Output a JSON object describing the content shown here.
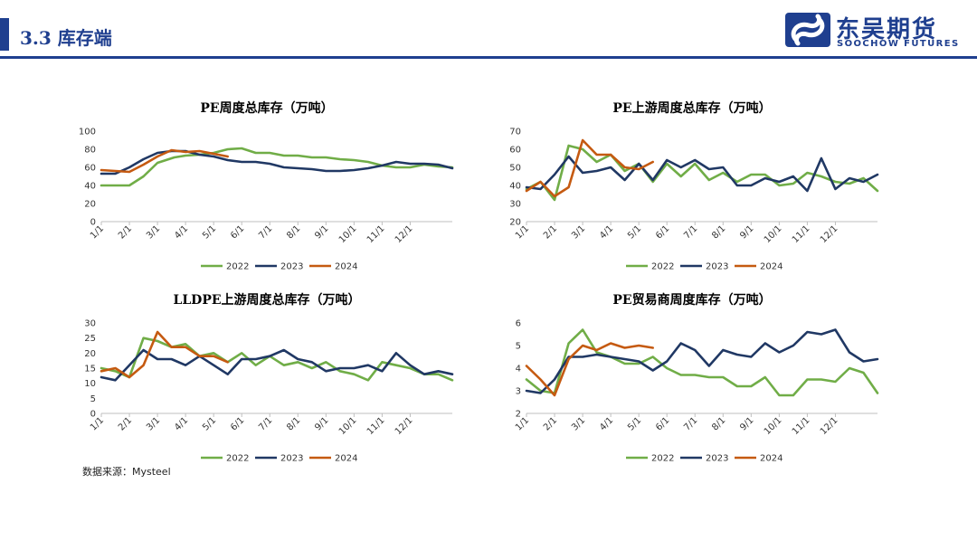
{
  "header": {
    "title": "3.3 库存端",
    "accent_color": "#1f3f8f"
  },
  "logo": {
    "cn": "东吴期货",
    "en": "SOOCHOW FUTURES",
    "color": "#1f3f8f"
  },
  "source": "数据来源：Mysteel",
  "series_colors": {
    "2022": "#70ad47",
    "2023": "#203864",
    "2024": "#c55a11"
  },
  "chart_data": [
    {
      "type": "line",
      "title": "PE周度总库存（万吨）",
      "xticks": [
        "1/1",
        "2/1",
        "3/1",
        "4/1",
        "5/1",
        "6/1",
        "7/1",
        "8/1",
        "9/1",
        "10/1",
        "11/1",
        "12/1"
      ],
      "ylim": [
        0,
        100
      ],
      "yticks": [
        0,
        20,
        40,
        60,
        80,
        100
      ],
      "legend": [
        "2022",
        "2023",
        "2024"
      ],
      "series": [
        {
          "name": "2022",
          "x": [
            0,
            1,
            1.5,
            2,
            2.6,
            3,
            3.5,
            4,
            4.5,
            5,
            5.5,
            6,
            6.5,
            7,
            7.5,
            8,
            8.5,
            9,
            9.5,
            10,
            10.5,
            11,
            11.5,
            12,
            12.5
          ],
          "values": [
            40,
            40,
            50,
            65,
            71,
            73,
            74,
            76,
            80,
            81,
            76,
            76,
            73,
            73,
            71,
            71,
            69,
            68,
            66,
            62,
            60,
            60,
            63,
            61,
            60
          ]
        },
        {
          "name": "2023",
          "x": [
            0,
            0.5,
            1,
            1.5,
            2,
            2.5,
            3,
            3.5,
            4,
            4.5,
            5,
            5.5,
            6,
            6.5,
            7,
            7.5,
            8,
            8.5,
            9,
            9.5,
            10,
            10.5,
            11,
            11.5,
            12,
            12.5
          ],
          "values": [
            53,
            53,
            60,
            69,
            76,
            78,
            78,
            74,
            72,
            68,
            66,
            66,
            64,
            60,
            59,
            58,
            56,
            56,
            57,
            59,
            62,
            66,
            64,
            64,
            63,
            59
          ]
        },
        {
          "name": "2024",
          "x": [
            0,
            0.5,
            1,
            1.5,
            2,
            2.5,
            3,
            3.5,
            4,
            4.5
          ],
          "values": [
            57,
            56,
            55,
            63,
            72,
            79,
            77,
            78,
            75,
            72
          ]
        }
      ]
    },
    {
      "type": "line",
      "title": "PE上游周度总库存（万吨）",
      "xticks": [
        "1/1",
        "2/1",
        "3/1",
        "4/1",
        "5/1",
        "6/1",
        "7/1",
        "8/1",
        "9/1",
        "10/1",
        "11/1",
        "12/1"
      ],
      "ylim": [
        20,
        70
      ],
      "yticks": [
        20,
        30,
        40,
        50,
        60,
        70
      ],
      "legend": [
        "2022",
        "2023",
        "2024"
      ],
      "series": [
        {
          "name": "2022",
          "x": [
            0,
            0.5,
            1,
            1.5,
            2,
            2.5,
            3,
            3.5,
            4,
            4.5,
            5,
            5.5,
            6,
            6.5,
            7,
            7.5,
            8,
            8.5,
            9,
            9.5,
            10,
            10.5,
            11,
            11.5,
            12,
            12.5
          ],
          "values": [
            38,
            42,
            32,
            62,
            60,
            53,
            57,
            48,
            52,
            42,
            52,
            45,
            52,
            43,
            47,
            42,
            46,
            46,
            40,
            41,
            47,
            45,
            42,
            41,
            44,
            37
          ]
        },
        {
          "name": "2023",
          "x": [
            0,
            0.5,
            1,
            1.5,
            2,
            2.5,
            3,
            3.5,
            4,
            4.5,
            5,
            5.5,
            6,
            6.5,
            7,
            7.5,
            8,
            8.5,
            9,
            9.5,
            10,
            10.5,
            11,
            11.5,
            12,
            12.5
          ],
          "values": [
            39,
            38,
            46,
            56,
            47,
            48,
            50,
            43,
            52,
            43,
            54,
            50,
            54,
            49,
            50,
            40,
            40,
            44,
            42,
            45,
            37,
            55,
            38,
            44,
            42,
            46
          ]
        },
        {
          "name": "2024",
          "x": [
            0,
            0.5,
            1,
            1.5,
            2,
            2.5,
            3,
            3.5,
            4,
            4.5
          ],
          "values": [
            37,
            42,
            34,
            39,
            65,
            57,
            57,
            50,
            49,
            53
          ]
        }
      ]
    },
    {
      "type": "line",
      "title": "LLDPE上游周度总库存（万吨）",
      "xticks": [
        "1/1",
        "2/1",
        "3/1",
        "4/1",
        "5/1",
        "6/1",
        "7/1",
        "8/1",
        "9/1",
        "10/1",
        "11/1",
        "12/1"
      ],
      "ylim": [
        0,
        30
      ],
      "yticks": [
        0,
        5,
        10,
        15,
        20,
        25,
        30
      ],
      "legend": [
        "2022",
        "2023",
        "2024"
      ],
      "series": [
        {
          "name": "2022",
          "x": [
            0,
            0.5,
            1,
            1.5,
            2,
            2.5,
            3,
            3.5,
            4,
            4.5,
            5,
            5.5,
            6,
            6.5,
            7,
            7.5,
            8,
            8.5,
            9,
            9.5,
            10,
            10.5,
            11,
            11.5,
            12,
            12.5
          ],
          "values": [
            15,
            14,
            12,
            25,
            24,
            22,
            23,
            19,
            20,
            17,
            20,
            16,
            19,
            16,
            17,
            15,
            17,
            14,
            13,
            11,
            17,
            16,
            15,
            13,
            13,
            11
          ]
        },
        {
          "name": "2023",
          "x": [
            0,
            0.5,
            1,
            1.5,
            2,
            2.5,
            3,
            3.5,
            4,
            4.5,
            5,
            5.5,
            6,
            6.5,
            7,
            7.5,
            8,
            8.5,
            9,
            9.5,
            10,
            10.5,
            11,
            11.5,
            12,
            12.5
          ],
          "values": [
            12,
            11,
            16,
            21,
            18,
            18,
            16,
            19,
            16,
            13,
            18,
            18,
            19,
            21,
            18,
            17,
            14,
            15,
            15,
            16,
            14,
            20,
            16,
            13,
            14,
            13
          ]
        },
        {
          "name": "2024",
          "x": [
            0,
            0.5,
            1,
            1.5,
            2,
            2.5,
            3,
            3.5,
            4,
            4.5
          ],
          "values": [
            14,
            15,
            12,
            16,
            27,
            22,
            22,
            19,
            19,
            17
          ]
        }
      ]
    },
    {
      "type": "line",
      "title": "PE贸易商周度库存（万吨）",
      "xticks": [
        "1/1",
        "2/1",
        "3/1",
        "4/1",
        "5/1",
        "6/1",
        "7/1",
        "8/1",
        "9/1",
        "10/1",
        "11/1",
        "12/1"
      ],
      "ylim": [
        2,
        6
      ],
      "yticks": [
        2,
        3,
        4,
        5,
        6
      ],
      "legend": [
        "2022",
        "2023",
        "2024"
      ],
      "series": [
        {
          "name": "2022",
          "x": [
            0,
            0.5,
            1,
            1.5,
            2,
            2.5,
            3,
            3.5,
            4,
            4.5,
            5,
            5.5,
            6,
            6.5,
            7,
            7.5,
            8,
            8.5,
            9,
            9.5,
            10,
            10.5,
            11,
            11.5,
            12,
            12.5
          ],
          "values": [
            3.5,
            3.0,
            2.9,
            5.1,
            5.7,
            4.7,
            4.5,
            4.2,
            4.2,
            4.5,
            4.0,
            3.7,
            3.7,
            3.6,
            3.6,
            3.2,
            3.2,
            3.6,
            2.8,
            2.8,
            3.5,
            3.5,
            3.4,
            4.0,
            3.8,
            2.9
          ]
        },
        {
          "name": "2023",
          "x": [
            0,
            0.5,
            1,
            1.5,
            2,
            2.5,
            3,
            3.5,
            4,
            4.5,
            5,
            5.5,
            6,
            6.5,
            7,
            7.5,
            8,
            8.5,
            9,
            9.5,
            10,
            10.5,
            11,
            11.5,
            12,
            12.5
          ],
          "values": [
            3.0,
            2.9,
            3.5,
            4.5,
            4.5,
            4.6,
            4.5,
            4.4,
            4.3,
            3.9,
            4.3,
            5.1,
            4.8,
            4.1,
            4.8,
            4.6,
            4.5,
            5.1,
            4.7,
            5.0,
            5.6,
            5.5,
            5.7,
            4.7,
            4.3,
            4.4
          ]
        },
        {
          "name": "2024",
          "x": [
            0,
            0.5,
            1,
            1.5,
            2,
            2.5,
            3,
            3.5,
            4,
            4.5
          ],
          "values": [
            4.1,
            3.5,
            2.8,
            4.4,
            5.0,
            4.8,
            5.1,
            4.9,
            5.0,
            4.9
          ]
        }
      ]
    }
  ]
}
